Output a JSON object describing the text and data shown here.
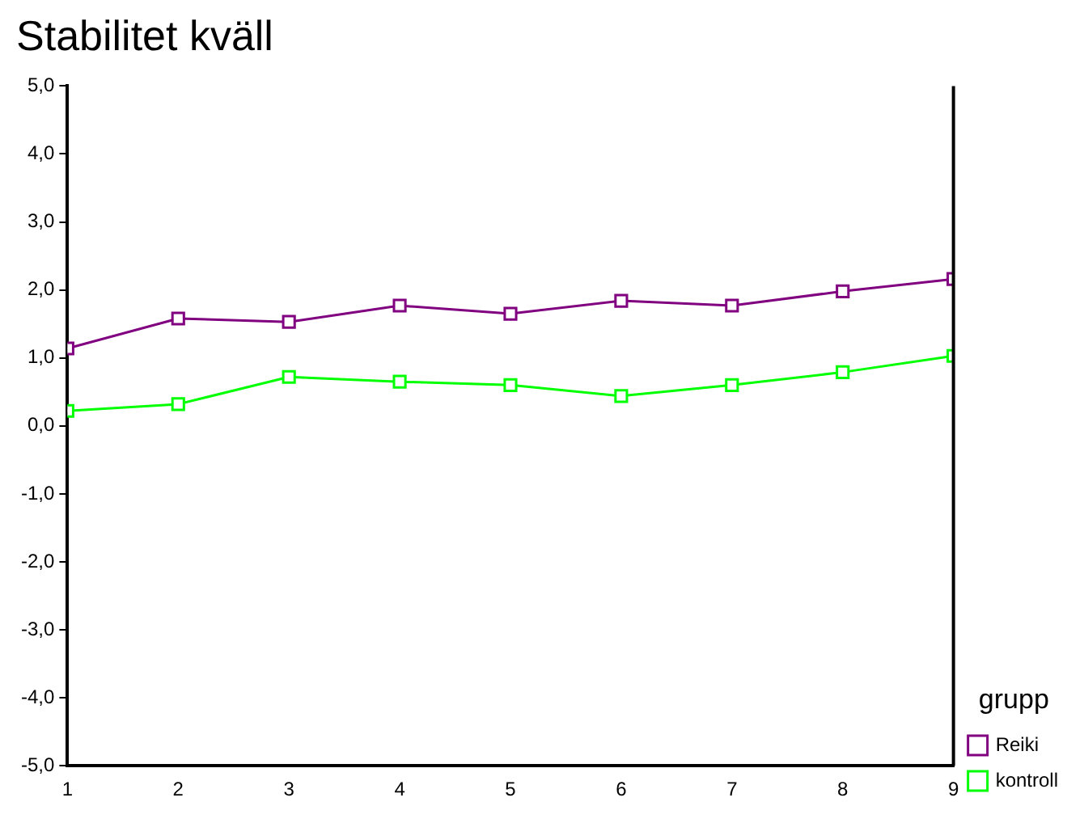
{
  "chart_data": {
    "type": "line",
    "title": "Stabilitet kväll",
    "legend_title": "grupp",
    "legend": "right",
    "marker": "square",
    "grid": false,
    "x": [
      1,
      2,
      3,
      4,
      5,
      6,
      7,
      8,
      9
    ],
    "xlim": [
      1,
      9
    ],
    "xticks": [
      1,
      2,
      3,
      4,
      5,
      6,
      7,
      8,
      9
    ],
    "ylim": [
      -5,
      5
    ],
    "yticks": [
      {
        "value": -5,
        "label": "-5,0"
      },
      {
        "value": -4,
        "label": "-4,0"
      },
      {
        "value": -3,
        "label": "-3,0"
      },
      {
        "value": -2,
        "label": "-2,0"
      },
      {
        "value": -1,
        "label": "-1,0"
      },
      {
        "value": 0,
        "label": "0,0"
      },
      {
        "value": 1,
        "label": "1,0"
      },
      {
        "value": 2,
        "label": "2,0"
      },
      {
        "value": 3,
        "label": "3,0"
      },
      {
        "value": 4,
        "label": "4,0"
      },
      {
        "value": 5,
        "label": "5,0"
      }
    ],
    "series": [
      {
        "name": "Reiki",
        "color": "#800080",
        "values": [
          1.14,
          1.58,
          1.53,
          1.77,
          1.65,
          1.84,
          1.77,
          1.98,
          2.16
        ]
      },
      {
        "name": "kontroll",
        "color": "#00ff00",
        "values": [
          0.22,
          0.32,
          0.72,
          0.65,
          0.6,
          0.44,
          0.6,
          0.79,
          1.03
        ]
      }
    ]
  }
}
